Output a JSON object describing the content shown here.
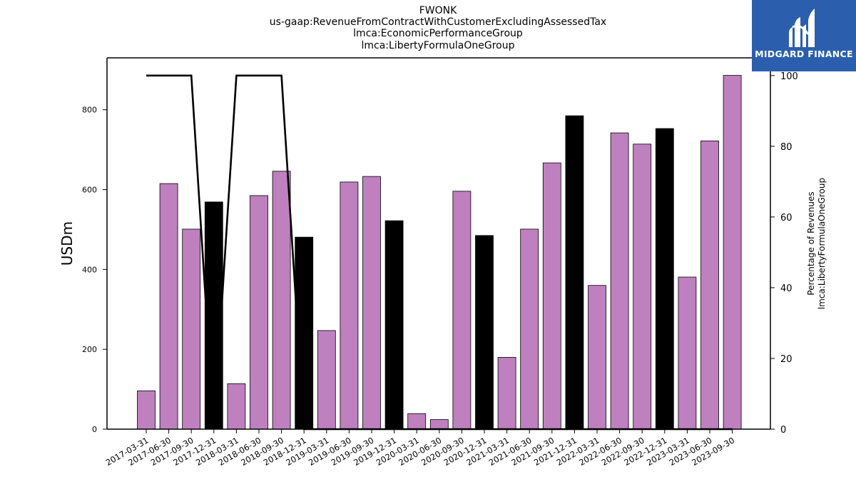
{
  "titles": {
    "line1": "FWONK",
    "line2": "us-gaap:RevenueFromContractWithCustomerExcludingAssessedTax",
    "line3": "lmca:EconomicPerformanceGroup",
    "line4": "lmca:LibertyFormulaOneGroup"
  },
  "logo": {
    "text": "MIDGARD FINANCE",
    "background": "#2b5fad"
  },
  "chart_data": {
    "type": "bar",
    "ylabel": "USDm",
    "y2label_line1": "Percentage of Revenues",
    "y2label_line2": "lmca:LibertyFormulaOneGroup",
    "ylim": [
      0,
      930
    ],
    "y2lim": [
      0,
      105
    ],
    "yticks": [
      0,
      200,
      400,
      600,
      800
    ],
    "y2ticks": [
      0,
      20,
      40,
      60,
      80,
      100
    ],
    "categories": [
      "2017-03-31",
      "2017-06-30",
      "2017-09-30",
      "2017-12-31",
      "2018-03-31",
      "2018-06-30",
      "2018-09-30",
      "2018-12-31",
      "2019-03-31",
      "2019-06-30",
      "2019-09-30",
      "2019-12-31",
      "2020-03-31",
      "2020-06-30",
      "2020-09-30",
      "2020-12-31",
      "2021-03-31",
      "2021-06-30",
      "2021-09-30",
      "2021-12-31",
      "2022-03-31",
      "2022-06-30",
      "2022-09-30",
      "2022-12-31",
      "2023-03-31",
      "2023-06-30",
      "2023-09-30"
    ],
    "values": [
      96,
      615,
      501,
      569,
      114,
      585,
      646,
      481,
      247,
      619,
      633,
      522,
      39,
      24,
      596,
      485,
      180,
      501,
      667,
      785,
      360,
      742,
      714,
      753,
      381,
      722,
      886
    ],
    "highlight": [
      false,
      false,
      false,
      true,
      false,
      false,
      false,
      true,
      false,
      false,
      false,
      true,
      false,
      false,
      false,
      true,
      false,
      false,
      false,
      true,
      false,
      false,
      false,
      true,
      false,
      false,
      false
    ],
    "bar_color": "#bf80bf",
    "highlight_color": "#000000",
    "percentage_series": [
      100,
      100,
      100,
      0,
      100,
      100,
      100,
      0,
      0,
      0,
      0,
      0,
      0,
      0,
      0,
      0,
      0,
      0,
      0,
      0,
      0,
      0,
      0,
      0,
      0,
      0,
      0
    ]
  }
}
